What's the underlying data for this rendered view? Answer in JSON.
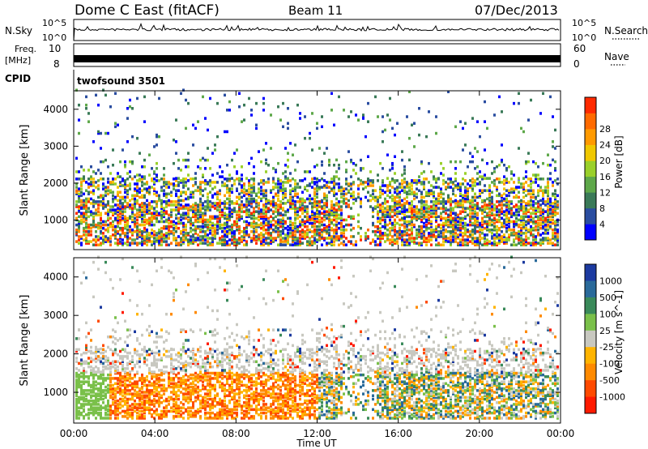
{
  "header": {
    "radar": "Dome C East (fitACF)",
    "beam": "Beam 11",
    "date": "07/Dec/2013"
  },
  "panels": {
    "nsky": {
      "label": "N.Sky",
      "top_tick": "10^5",
      "bottom_tick": "10^0"
    },
    "nsearch": {
      "label": "N.Search",
      "top_tick": "10^5",
      "bottom_tick": "10^0"
    },
    "freq": {
      "label_line1": "Freq.",
      "label_line2": "[MHz]",
      "tick_top": "10",
      "tick_bottom": "8"
    },
    "nave": {
      "label": "Nave",
      "tick_top": "60",
      "tick_bottom": "0"
    },
    "cpid": {
      "label": "CPID",
      "value": "twofsound 3501"
    }
  },
  "colors": {
    "trace": "#000000",
    "background": "#ffffff"
  },
  "chart_data": [
    {
      "type": "heatmap",
      "quantity": "Power",
      "ylabel": "Slant Range [km]",
      "ylim": [
        200,
        4500
      ],
      "yticks": [
        "1000",
        "2000",
        "3000",
        "4000"
      ],
      "colorbar_label": "Power [dB]",
      "colorbar_ticks": [
        "4",
        "8",
        "12",
        "16",
        "20",
        "24",
        "28"
      ],
      "colors": [
        "#0000ff",
        "#2a4da0",
        "#3a7a58",
        "#5ea84a",
        "#9ad02a",
        "#f0c800",
        "#ff9a00",
        "#ff6a00",
        "#ff2a00"
      ]
    },
    {
      "type": "heatmap",
      "quantity": "Velocity",
      "ylabel": "Slant Range [km]",
      "ylim": [
        200,
        4500
      ],
      "yticks": [
        "1000",
        "2000",
        "3000",
        "4000"
      ],
      "colorbar_label": "Velocity [m s^-1]",
      "colorbar_ticks": [
        "1000",
        "500",
        "100",
        "25",
        "-25",
        "-100",
        "-500",
        "-1000"
      ],
      "colors": [
        "#1c3aa0",
        "#2a6a9a",
        "#3a8a5a",
        "#7ac04a",
        "#c8c8c0",
        "#ffb400",
        "#ff8a00",
        "#ff4a00",
        "#ff1a00"
      ]
    }
  ],
  "xaxis": {
    "label": "Time UT",
    "ticks": [
      "00:00",
      "04:00",
      "08:00",
      "12:00",
      "16:00",
      "20:00",
      "00:00"
    ]
  }
}
